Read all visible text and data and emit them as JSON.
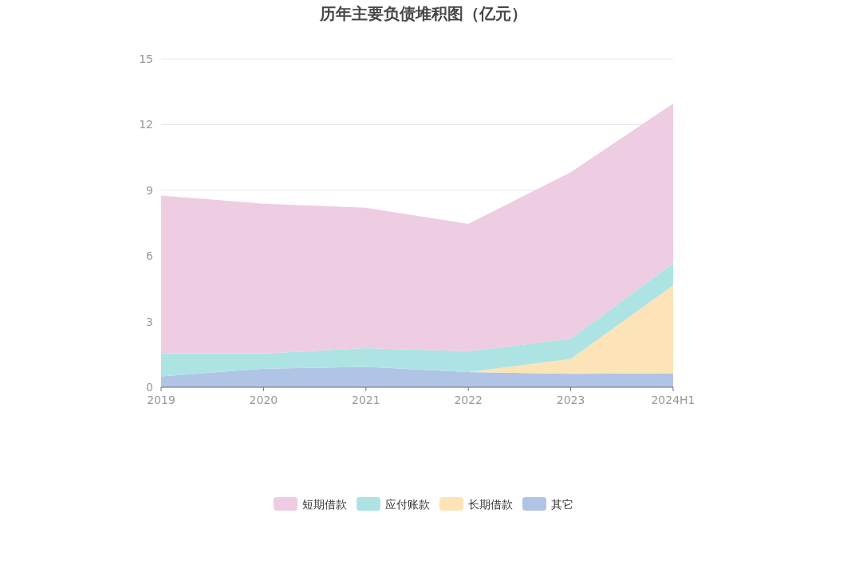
{
  "chart_data": {
    "type": "area",
    "title": "历年主要负债堆积图（亿元）",
    "stacked": true,
    "categories": [
      "2019",
      "2020",
      "2021",
      "2022",
      "2023",
      "2024H1"
    ],
    "series": [
      {
        "name": "其它",
        "color": "#b0c4e6",
        "values": [
          0.49,
          0.85,
          0.93,
          0.69,
          0.61,
          0.64
        ]
      },
      {
        "name": "长期借款",
        "color": "#fde3b8",
        "values": [
          0,
          0,
          0,
          0,
          0.68,
          4.01
        ]
      },
      {
        "name": "应付账款",
        "color": "#aee3e3",
        "values": [
          1.05,
          0.69,
          0.85,
          0.95,
          0.92,
          1.01
        ]
      },
      {
        "name": "短期借款",
        "color": "#eecce2",
        "values": [
          7.22,
          6.84,
          6.42,
          5.82,
          7.61,
          7.3
        ]
      }
    ],
    "ylim": [
      0,
      15
    ],
    "yticks": [
      0,
      3,
      6,
      9,
      12,
      15
    ],
    "grid": "y",
    "legend": "bottom"
  }
}
